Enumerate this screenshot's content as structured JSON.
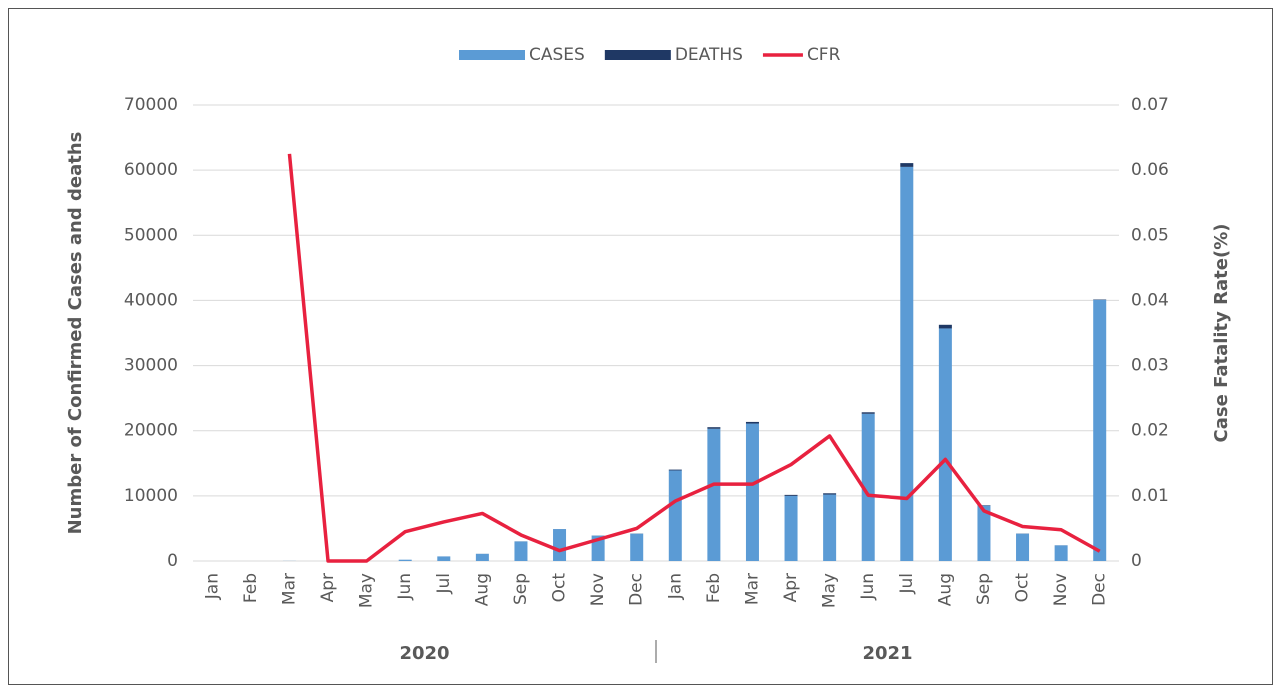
{
  "chart_data": {
    "type": "bar_line",
    "categories": [
      "Jan",
      "Feb",
      "Mar",
      "Apr",
      "May",
      "Jun",
      "Jul",
      "Aug",
      "Sep",
      "Oct",
      "Nov",
      "Dec",
      "Jan",
      "Feb",
      "Mar",
      "Apr",
      "May",
      "Jun",
      "Jul",
      "Aug",
      "Sep",
      "Oct",
      "Nov",
      "Dec"
    ],
    "groups": [
      "2020",
      "2021"
    ],
    "series": [
      {
        "name": "CASES",
        "color": "#5b9bd5",
        "stack": true,
        "values": [
          0,
          0,
          16,
          0,
          0,
          200,
          700,
          1100,
          3000,
          4900,
          3900,
          4200,
          13900,
          20300,
          21100,
          10000,
          10200,
          22600,
          60500,
          35700,
          8500,
          4200,
          2400,
          40100
        ]
      },
      {
        "name": "DEATHS",
        "color": "#1f3864",
        "stack": true,
        "values": [
          0,
          0,
          1,
          0,
          0,
          1,
          4,
          8,
          12,
          8,
          13,
          21,
          130,
          240,
          250,
          150,
          195,
          230,
          580,
          560,
          65,
          22,
          11,
          60
        ]
      },
      {
        "name": "CFR",
        "color": "#e8213f",
        "axis": "y2",
        "values": [
          null,
          null,
          0.0625,
          0,
          0,
          0.0045,
          0.006,
          0.0073,
          0.004,
          0.0016,
          0.0033,
          0.005,
          0.0092,
          0.0118,
          0.0118,
          0.0148,
          0.0192,
          0.0101,
          0.0096,
          0.0156,
          0.0077,
          0.0053,
          0.0048,
          0.0015
        ]
      }
    ],
    "ylabel": "Number of Confirmed Cases and deaths",
    "y2label": "Case Fatality Rate(%)",
    "ylim": [
      0,
      70000
    ],
    "yticks": [
      0,
      10000,
      20000,
      30000,
      40000,
      50000,
      60000,
      70000
    ],
    "y2lim": [
      0,
      0.07
    ],
    "y2ticks": [
      0,
      0.01,
      0.02,
      0.03,
      0.04,
      0.05,
      0.06,
      0.07
    ],
    "grid": true,
    "legend": "top"
  }
}
